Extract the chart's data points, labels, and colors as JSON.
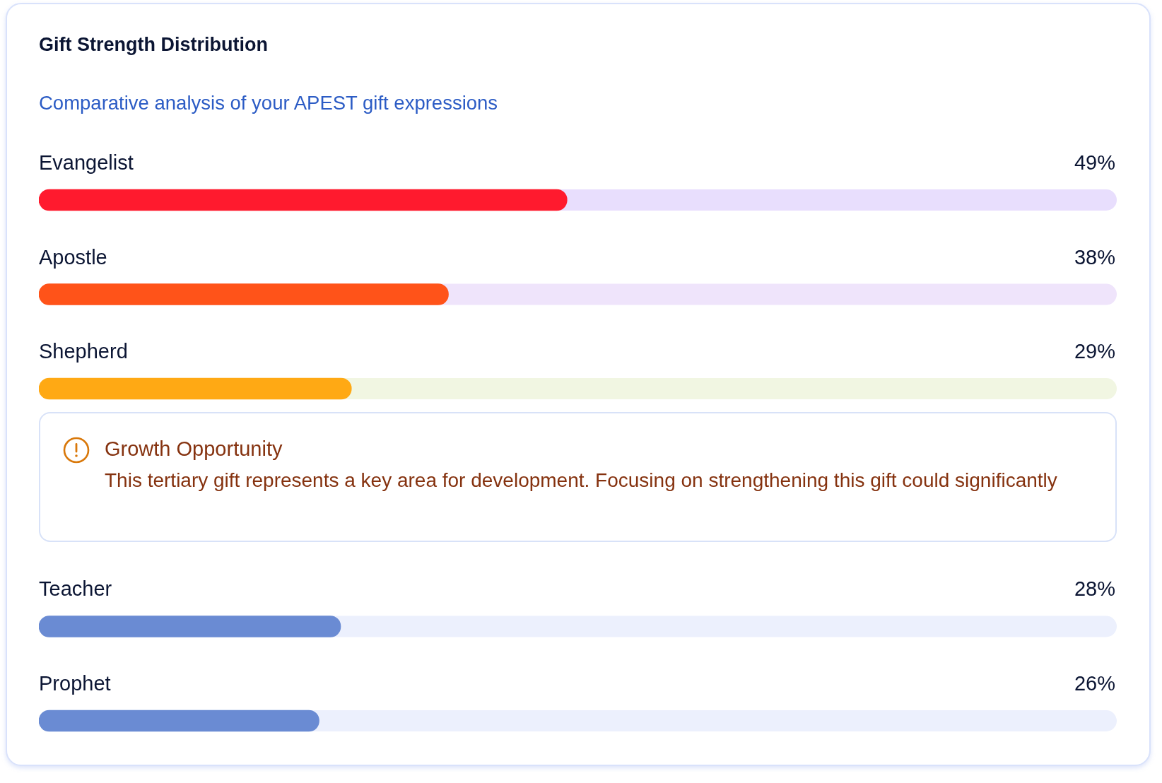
{
  "chart_data": {
    "type": "bar",
    "orientation": "horizontal",
    "title": "Gift Strength Distribution",
    "subtitle": "Comparative analysis of your APEST gift expressions",
    "categories": [
      "Evangelist",
      "Apostle",
      "Shepherd",
      "Teacher",
      "Prophet"
    ],
    "values": [
      49,
      38,
      29,
      28,
      26
    ],
    "colors": [
      "#ff1a2e",
      "#ff5319",
      "#ffa914",
      "#6a8bd3",
      "#6a8bd3"
    ],
    "value_labels": [
      "49%",
      "38%",
      "29%",
      "28%",
      "26%"
    ],
    "xlim": [
      0,
      100
    ],
    "tick_labels": "y",
    "annotations": [
      "Growth Opportunity",
      "This tertiary gift represents a key area for development. Focusing on strengthening this gift could significantly"
    ]
  }
}
